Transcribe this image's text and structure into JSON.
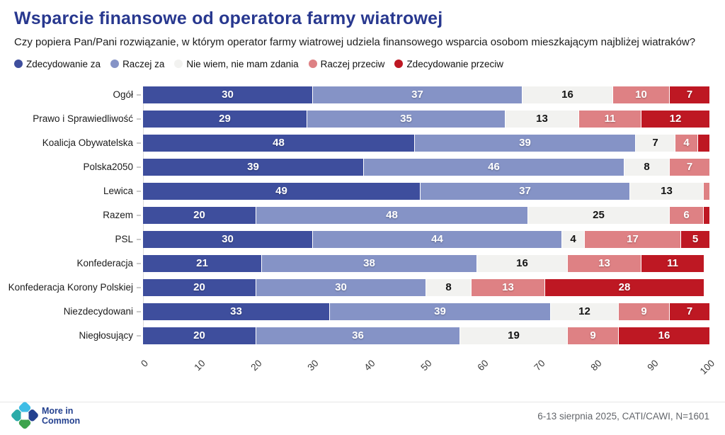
{
  "header": {
    "title": "Wsparcie finansowe od operatora farmy wiatrowej",
    "subtitle": "Czy popiera Pan/Pani rozwiązanie, w którym operator farmy wiatrowej udziela finansowego wsparcia osobom mieszkającym najbliżej wiatraków?"
  },
  "chart_data": {
    "type": "bar",
    "stacked": true,
    "orientation": "horizontal",
    "unit": "%",
    "categories": [
      "Ogół",
      "Prawo i Sprawiedliwość",
      "Koalicja Obywatelska",
      "Polska2050",
      "Lewica",
      "Razem",
      "PSL",
      "Konfederacja",
      "Konfederacja Korony Polskiej",
      "Niezdecydowani",
      "Niegłosujący"
    ],
    "series": [
      {
        "name": "Zdecydowanie za",
        "color": "#3E4E9D",
        "label_color": "#ffffff",
        "values": [
          30,
          29,
          48,
          39,
          49,
          20,
          30,
          21,
          20,
          33,
          20
        ]
      },
      {
        "name": "Raczej za",
        "color": "#8593C6",
        "label_color": "#ffffff",
        "values": [
          37,
          35,
          39,
          46,
          37,
          48,
          44,
          38,
          30,
          39,
          36
        ]
      },
      {
        "name": "Nie wiem, nie mam zdania",
        "color": "#F2F2F0",
        "label_color": "#141414",
        "values": [
          16,
          13,
          7,
          8,
          13,
          25,
          4,
          16,
          8,
          12,
          19
        ]
      },
      {
        "name": "Raczej przeciw",
        "color": "#DE8184",
        "label_color": "#ffffff",
        "values": [
          10,
          11,
          4,
          7,
          1,
          6,
          17,
          13,
          13,
          9,
          9
        ]
      },
      {
        "name": "Zdecydowanie przeciw",
        "color": "#BE1823",
        "label_color": "#ffffff",
        "values": [
          7,
          12,
          2,
          0,
          0,
          1,
          5,
          11,
          28,
          7,
          16
        ]
      }
    ],
    "xlim": [
      0,
      100
    ],
    "x_ticks": [
      0,
      10,
      20,
      30,
      40,
      50,
      60,
      70,
      80,
      90,
      100
    ],
    "legend_position": "top",
    "grid": false,
    "label_min_value_shown": 4
  },
  "footer": {
    "source": "6-13 sierpnia 2025, CATI/CAWI, N=1601",
    "brand": {
      "line1": "More in",
      "line2": "Common"
    }
  }
}
